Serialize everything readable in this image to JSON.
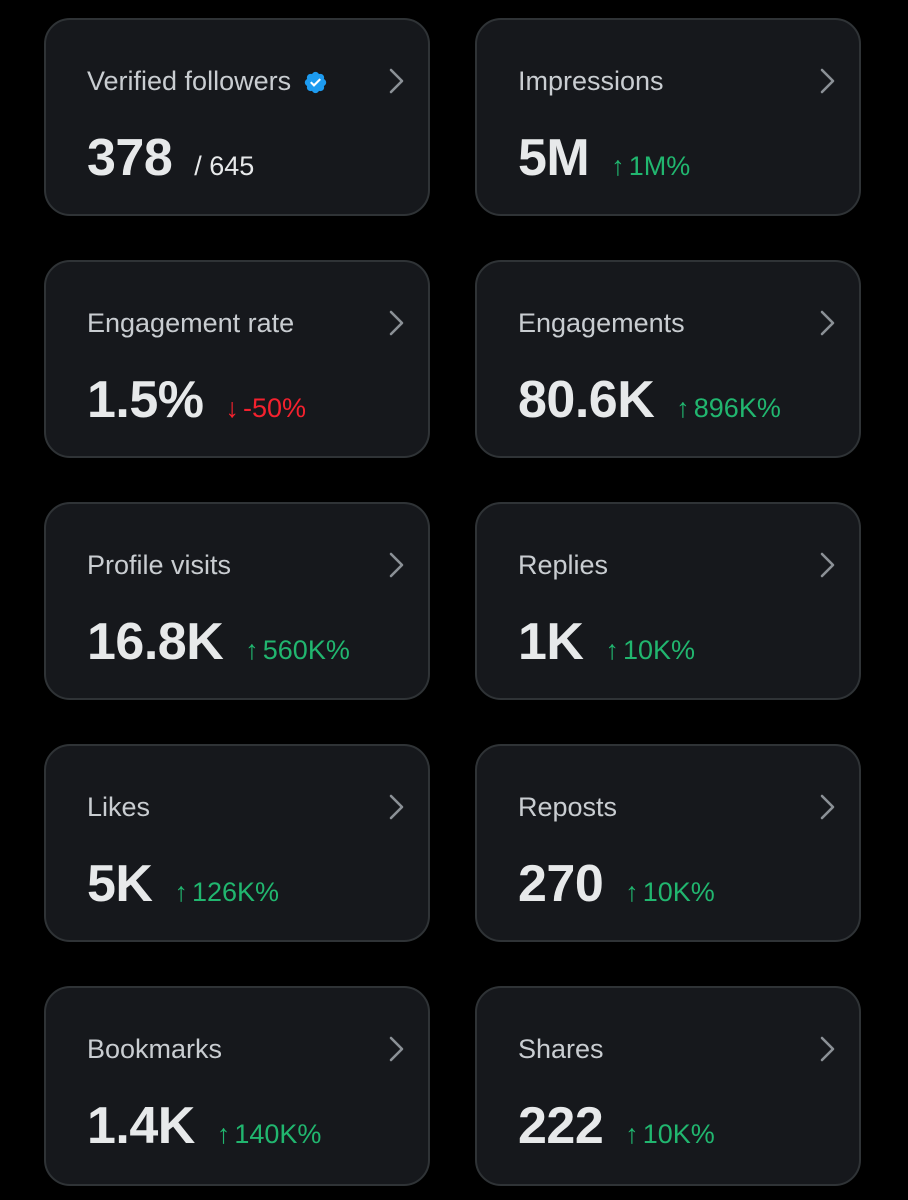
{
  "colors": {
    "background": "#000000",
    "card_background": "#16181c",
    "card_border": "#2f3336",
    "positive": "#21b66f",
    "negative": "#f4212e",
    "verified_badge": "#1d9bf0"
  },
  "cards": [
    {
      "label": "Verified followers",
      "value": "378",
      "total": "/ 645",
      "icon": "verified-badge-icon"
    },
    {
      "label": "Impressions",
      "value": "5M",
      "change": {
        "direction": "up",
        "arrow": "↑",
        "text": "1M%"
      }
    },
    {
      "label": "Engagement rate",
      "value": "1.5%",
      "change": {
        "direction": "down",
        "arrow": "↓",
        "text": "-50%"
      }
    },
    {
      "label": "Engagements",
      "value": "80.6K",
      "change": {
        "direction": "up",
        "arrow": "↑",
        "text": "896K%"
      }
    },
    {
      "label": "Profile visits",
      "value": "16.8K",
      "change": {
        "direction": "up",
        "arrow": "↑",
        "text": "560K%"
      }
    },
    {
      "label": "Replies",
      "value": "1K",
      "change": {
        "direction": "up",
        "arrow": "↑",
        "text": "10K%"
      }
    },
    {
      "label": "Likes",
      "value": "5K",
      "change": {
        "direction": "up",
        "arrow": "↑",
        "text": "126K%"
      }
    },
    {
      "label": "Reposts",
      "value": "270",
      "change": {
        "direction": "up",
        "arrow": "↑",
        "text": "10K%"
      }
    },
    {
      "label": "Bookmarks",
      "value": "1.4K",
      "change": {
        "direction": "up",
        "arrow": "↑",
        "text": "140K%"
      }
    },
    {
      "label": "Shares",
      "value": "222",
      "change": {
        "direction": "up",
        "arrow": "↑",
        "text": "10K%"
      }
    }
  ]
}
